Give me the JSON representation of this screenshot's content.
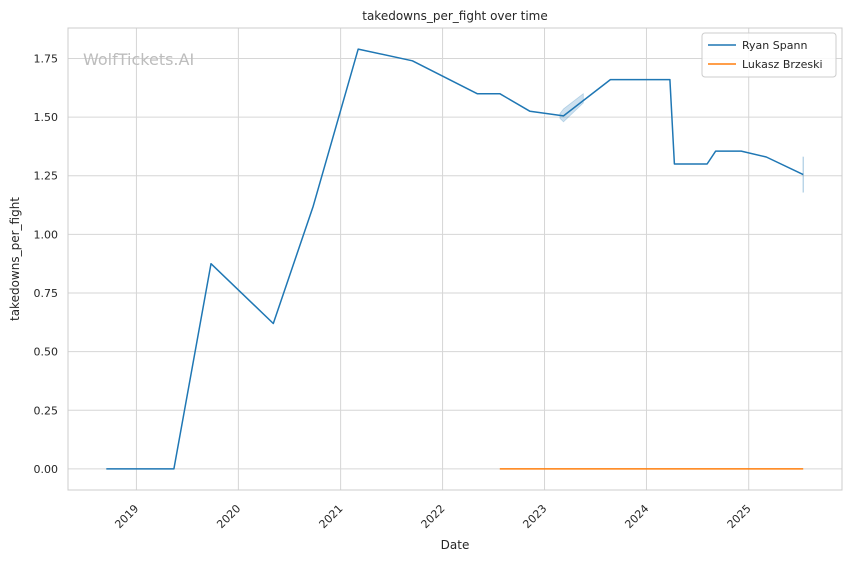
{
  "chart_data": {
    "type": "line",
    "title": "takedowns_per_fight over time",
    "xlabel": "Date",
    "ylabel": "takedowns_per_fight",
    "watermark": "WolfTickets.AI",
    "x_ticks": [
      "2019",
      "2020",
      "2021",
      "2022",
      "2023",
      "2024",
      "2025"
    ],
    "y_ticks": [
      "0.00",
      "0.25",
      "0.50",
      "0.75",
      "1.00",
      "1.25",
      "1.50",
      "1.75"
    ],
    "xlim": [
      "2018-05-01",
      "2025-12-01"
    ],
    "ylim": [
      -0.09,
      1.88
    ],
    "grid": true,
    "legend_position": "top-right",
    "series": [
      {
        "name": "Ryan Spann",
        "color": "#1f77b4",
        "points": [
          [
            "2018-09-15",
            0.0
          ],
          [
            "2019-05-15",
            0.0
          ],
          [
            "2019-09-25",
            0.875
          ],
          [
            "2020-05-05",
            0.62
          ],
          [
            "2020-09-25",
            1.12
          ],
          [
            "2021-03-05",
            1.79
          ],
          [
            "2021-09-15",
            1.74
          ],
          [
            "2022-05-05",
            1.6
          ],
          [
            "2022-07-25",
            1.6
          ],
          [
            "2022-11-10",
            1.525
          ],
          [
            "2023-03-10",
            1.505
          ],
          [
            "2023-08-25",
            1.66
          ],
          [
            "2024-03-25",
            1.66
          ],
          [
            "2024-04-10",
            1.3
          ],
          [
            "2024-08-05",
            1.3
          ],
          [
            "2024-09-05",
            1.355
          ],
          [
            "2024-12-05",
            1.355
          ],
          [
            "2025-03-05",
            1.33
          ],
          [
            "2025-07-15",
            1.255
          ]
        ],
        "confidence_bands": [
          [
            [
              "2023-02-25",
              1.515
            ],
            [
              "2023-03-10",
              1.535
            ],
            [
              "2023-05-20",
              1.6
            ],
            [
              "2023-05-20",
              1.56
            ],
            [
              "2023-03-10",
              1.48
            ],
            [
              "2023-02-25",
              1.495
            ]
          ],
          [
            [
              "2025-07-14",
              1.33
            ],
            [
              "2025-07-16",
              1.33
            ],
            [
              "2025-07-16",
              1.18
            ],
            [
              "2025-07-14",
              1.18
            ]
          ]
        ]
      },
      {
        "name": "Lukasz Brzeski",
        "color": "#ff7f0e",
        "points": [
          [
            "2022-07-25",
            0.0
          ],
          [
            "2025-07-15",
            0.0
          ]
        ]
      }
    ]
  }
}
